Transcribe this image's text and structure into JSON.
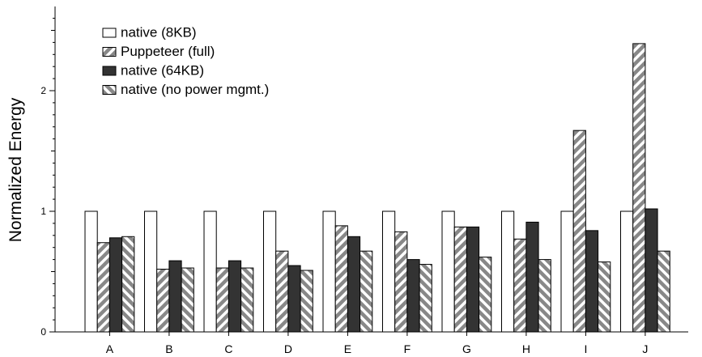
{
  "chart_data": {
    "type": "bar",
    "title": "",
    "xlabel": "",
    "ylabel": "Normalized Energy",
    "ylim": [
      0,
      2.7
    ],
    "yticks": [
      0,
      1,
      2
    ],
    "ytick_labels": [
      "0",
      "1",
      "2"
    ],
    "grid": false,
    "legend_position": "top-left",
    "categories": [
      "A",
      "B",
      "C",
      "D",
      "E",
      "F",
      "G",
      "H",
      "I",
      "J"
    ],
    "series": [
      {
        "name": "native (8KB)",
        "fill": "#ffffff",
        "pattern": "solid",
        "values": [
          1.0,
          1.0,
          1.0,
          1.0,
          1.0,
          1.0,
          1.0,
          1.0,
          1.0,
          1.0
        ]
      },
      {
        "name": "Puppeteer (full)",
        "fill": "#888888",
        "pattern": "hatch-forward",
        "values": [
          0.74,
          0.52,
          0.53,
          0.67,
          0.88,
          0.83,
          0.87,
          0.77,
          1.67,
          2.39
        ]
      },
      {
        "name": "native (64KB)",
        "fill": "#333333",
        "pattern": "solid",
        "values": [
          0.78,
          0.59,
          0.59,
          0.55,
          0.79,
          0.6,
          0.87,
          0.91,
          0.84,
          1.02
        ]
      },
      {
        "name": "native (no power mgmt.)",
        "fill": "#888888",
        "pattern": "hatch-backward",
        "values": [
          0.79,
          0.53,
          0.53,
          0.51,
          0.67,
          0.56,
          0.62,
          0.6,
          0.58,
          0.67
        ]
      }
    ]
  }
}
